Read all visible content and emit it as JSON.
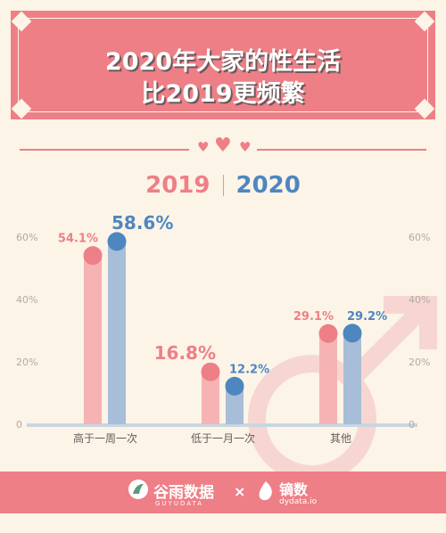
{
  "banner": {
    "title_line1": "2020年大家的性生活",
    "title_line2": "比2019更频繁"
  },
  "legend": {
    "a": "2019",
    "b": "2020"
  },
  "colors": {
    "pink": "#ee7f86",
    "pink_bar": "#f5b3b4",
    "blue": "#4e86c0",
    "blue_bar": "#a8bdd8",
    "background": "#fbf4e7"
  },
  "chart_data": {
    "type": "bar",
    "categories": [
      "高于一周一次",
      "低于一月一次",
      "其他"
    ],
    "series": [
      {
        "name": "2019",
        "values": [
          54.1,
          16.8,
          29.1
        ],
        "labels": [
          "54.1%",
          "16.8%",
          "29.1%"
        ]
      },
      {
        "name": "2020",
        "values": [
          58.6,
          12.2,
          29.2
        ],
        "labels": [
          "58.6%",
          "12.2%",
          "29.2%"
        ]
      }
    ],
    "yticks": [
      "0",
      "20%",
      "40%",
      "60%"
    ],
    "ylim": [
      0,
      60
    ],
    "grid": false,
    "legend_position": "top-center"
  },
  "footer": {
    "brand1": "谷雨数据",
    "brand1_sub": "GUYUDATA",
    "separator": "×",
    "brand2": "镝数",
    "brand2_sub": "dydata.io"
  }
}
